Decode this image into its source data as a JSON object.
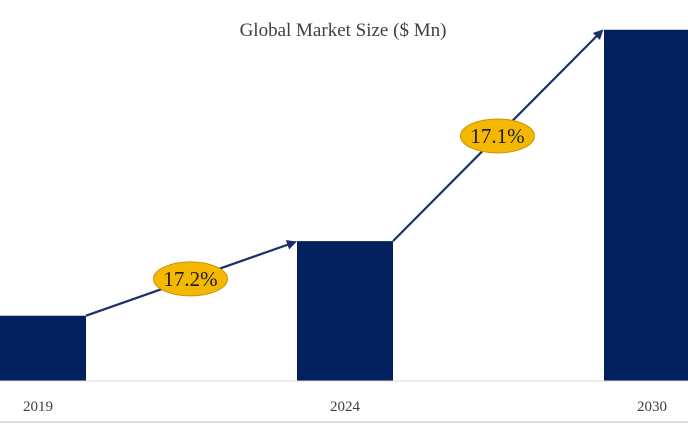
{
  "chart_data": {
    "type": "bar",
    "title": "Global Market Size ($ Mn)",
    "xlabel": "",
    "ylabel": "",
    "categories": [
      "2019",
      "2024",
      "2030"
    ],
    "values": [
      10.5,
      22.5,
      56.5
    ],
    "ylim": [
      0,
      60
    ],
    "grid": false,
    "legend": "none",
    "bar_color": "#02205c",
    "arrow_color": "#1c2f6b",
    "annotations": [
      {
        "text": "17.2%",
        "from": "2019",
        "to": "2024",
        "fill": "#f5b800",
        "stroke": "#c89400"
      },
      {
        "text": "17.1%",
        "from": "2024",
        "to": "2030",
        "fill": "#f5b800",
        "stroke": "#c89400"
      }
    ]
  }
}
